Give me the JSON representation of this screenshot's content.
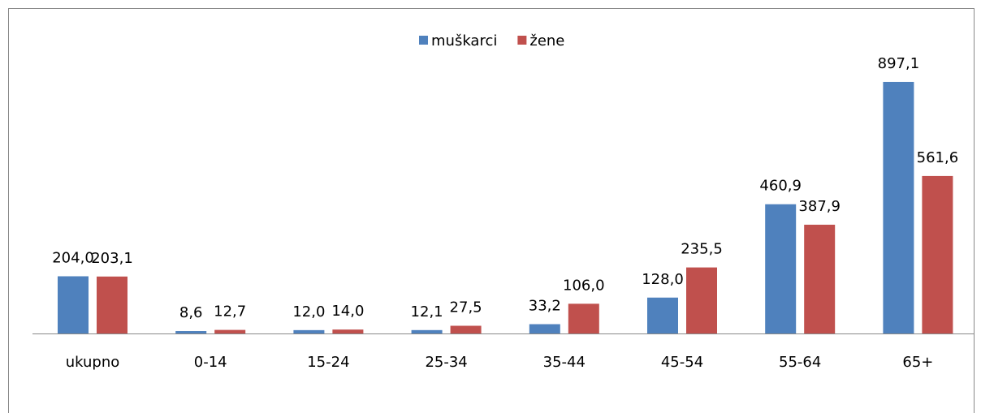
{
  "chart_data": {
    "type": "bar",
    "categories": [
      "ukupno",
      "0-14",
      "15-24",
      "25-34",
      "35-44",
      "45-54",
      "55-64",
      "65+"
    ],
    "series": [
      {
        "name": "muškarci",
        "color": "#4f81bd",
        "values": [
          204.0,
          8.6,
          12.0,
          12.1,
          33.2,
          128.0,
          460.9,
          897.1
        ],
        "value_labels": [
          "204,0",
          "8,6",
          "12,0",
          "12,1",
          "33,2",
          "128,0",
          "460,9",
          "897,1"
        ]
      },
      {
        "name": "žene",
        "color": "#c0504d",
        "values": [
          203.1,
          12.7,
          14.0,
          27.5,
          106.0,
          235.5,
          387.9,
          561.6
        ],
        "value_labels": [
          "203,1",
          "12,7",
          "14,0",
          "27,5",
          "106,0",
          "235,5",
          "387,9",
          "561,6"
        ]
      }
    ],
    "legend": "top"
  }
}
